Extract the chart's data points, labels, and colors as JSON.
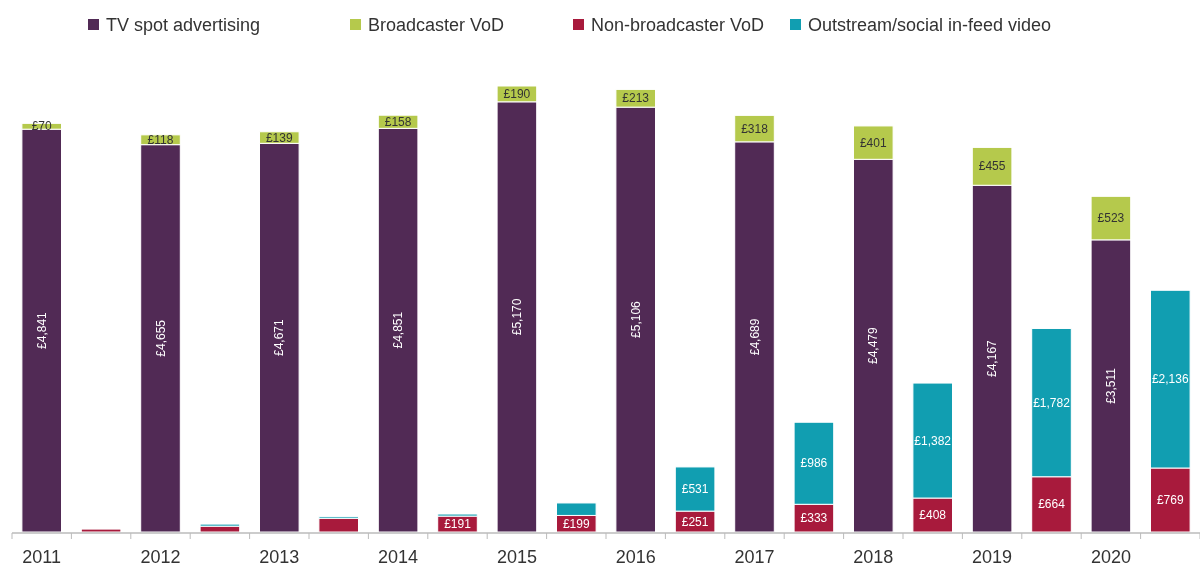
{
  "chart_data": {
    "type": "bar",
    "stacked": true,
    "legend": "top",
    "categories": [
      "2011",
      null,
      "2012",
      null,
      "2013",
      null,
      "2014",
      null,
      "2015",
      null,
      "2016",
      null,
      "2017",
      null,
      "2018",
      null,
      "2019",
      null,
      "2020",
      null
    ],
    "series": [
      {
        "name": "TV spot advertising",
        "color": "#512a55",
        "values": [
          4841,
          null,
          4655,
          null,
          4671,
          null,
          4851,
          null,
          5170,
          null,
          5106,
          null,
          4689,
          null,
          4479,
          null,
          4167,
          null,
          3511,
          null
        ],
        "value_labels": [
          "£4,841",
          null,
          "£4,655",
          null,
          "£4,671",
          null,
          "£4,851",
          null,
          "£5,170",
          null,
          "£5,106",
          null,
          "£4,689",
          null,
          "£4,479",
          null,
          "£4,167",
          null,
          "£3,511",
          null
        ]
      },
      {
        "name": "Broadcaster VoD",
        "color": "#b5c94c",
        "values": [
          70,
          null,
          118,
          null,
          139,
          null,
          158,
          null,
          190,
          null,
          213,
          null,
          318,
          null,
          401,
          null,
          455,
          null,
          523,
          null
        ],
        "value_labels": [
          "£70",
          null,
          "£118",
          null,
          "£139",
          null,
          "£158",
          null,
          "£190",
          null,
          "£213",
          null,
          "£318",
          null,
          "£401",
          null,
          "£455",
          null,
          "£523",
          null
        ]
      },
      {
        "name": "Non-broadcaster VoD",
        "color": "#a81a3c",
        "values": [
          null,
          35,
          null,
          70,
          null,
          165,
          null,
          191,
          null,
          199,
          null,
          251,
          null,
          333,
          null,
          408,
          null,
          664,
          null,
          769
        ],
        "value_labels": [
          null,
          null,
          null,
          null,
          null,
          null,
          null,
          "£191",
          null,
          "£199",
          null,
          "£251",
          null,
          "£333",
          null,
          "£408",
          null,
          "£664",
          null,
          "£769"
        ]
      },
      {
        "name": "Outstream/social in-feed video",
        "color": "#119eb1",
        "values": [
          null,
          null,
          null,
          25,
          null,
          20,
          null,
          25,
          null,
          150,
          null,
          531,
          null,
          986,
          null,
          1382,
          null,
          1782,
          null,
          2136
        ],
        "value_labels": [
          null,
          null,
          null,
          null,
          null,
          null,
          null,
          null,
          null,
          null,
          null,
          "£531",
          null,
          "£986",
          null,
          "£1,382",
          null,
          "£1,782",
          null,
          "£2,136"
        ]
      }
    ]
  }
}
